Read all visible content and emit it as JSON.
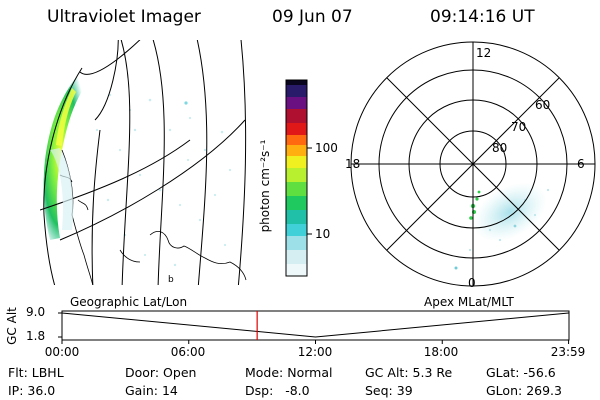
{
  "header": {
    "instrument": "Ultraviolet Imager",
    "date": "09 Jun 07",
    "time": "09:14:16 UT"
  },
  "colorbar": {
    "unit_label": "photon cm⁻²s⁻¹",
    "ticks": [
      "100",
      "10"
    ]
  },
  "polar_plot": {
    "mlt_labels": {
      "top": "12",
      "left": "18",
      "right": "6",
      "bottom": "0"
    },
    "lat_labels": [
      "60",
      "70",
      "80"
    ]
  },
  "timeline": {
    "left_caption": "Geographic Lat/Lon",
    "right_caption": "Apex MLat/MLT",
    "axis_label": "GC Alt",
    "y_ticks": [
      "9.0",
      "1.8"
    ],
    "x_ticks": [
      "00:00",
      "06:00",
      "12:00",
      "18:00",
      "23:59"
    ],
    "altitude_curve": {
      "x": [
        0,
        12,
        23.98
      ],
      "y": [
        9.0,
        1.8,
        9.0
      ]
    },
    "marker_time": "09:14:16"
  },
  "status": {
    "flt": {
      "label": "Flt:",
      "value": "LBHL"
    },
    "ip": {
      "label": "IP:",
      "value": "36.0"
    },
    "door": {
      "label": "Door:",
      "value": "Open"
    },
    "gain": {
      "label": "Gain:",
      "value": "14"
    },
    "mode": {
      "label": "Mode:",
      "value": "Normal"
    },
    "dsp": {
      "label": "Dsp:",
      "value": "-8.0"
    },
    "gcalt": {
      "label": "GC Alt:",
      "value": "5.3 Re"
    },
    "seq": {
      "label": "Seq:",
      "value": "39"
    },
    "glat": {
      "label": "GLat:",
      "value": "-56.6"
    },
    "glon": {
      "label": "GLon:",
      "value": "269.3"
    }
  }
}
